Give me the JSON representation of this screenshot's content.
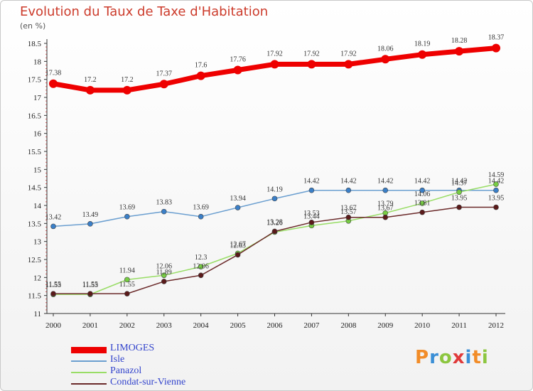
{
  "title": "Evolution du Taux de Taxe d'Habitation",
  "unit": "(en %)",
  "logo": {
    "text": [
      "P",
      "r",
      "o",
      "x",
      "i",
      "t",
      "i"
    ],
    "colors": [
      "#f28c28",
      "#3a8fd6",
      "#8cc63f",
      "#e03a3a",
      "#3a8fd6",
      "#f28c28",
      "#8cc63f"
    ]
  },
  "chart_data": {
    "type": "line",
    "x": [
      "2000",
      "2001",
      "2002",
      "2003",
      "2004",
      "2005",
      "2006",
      "2007",
      "2008",
      "2009",
      "2010",
      "2011",
      "2012"
    ],
    "ylim": [
      11,
      18.5
    ],
    "yticks": [
      "11",
      "11.5",
      "12",
      "12.5",
      "13",
      "13.5",
      "14",
      "14.5",
      "15",
      "15.5",
      "16",
      "16.5",
      "17",
      "17.5",
      "18",
      "18.5"
    ],
    "grid": false,
    "legend": "bottom-left",
    "series": [
      {
        "name": "LIMOGES",
        "color": "#ee0000",
        "marker": "#ee0000",
        "width": 7,
        "values": [
          17.38,
          17.2,
          17.2,
          17.37,
          17.6,
          17.76,
          17.92,
          17.92,
          17.92,
          18.06,
          18.19,
          18.28,
          18.37
        ],
        "labels": [
          "17.38",
          "17.2",
          "17.2",
          "17.37",
          "17.6",
          "17.76",
          "17.92",
          "17.92",
          "17.92",
          "18.06",
          "18.19",
          "18.28",
          "18.37"
        ]
      },
      {
        "name": "Isle",
        "color": "#6b9fd0",
        "marker": "#3a7fc8",
        "width": 1.5,
        "values": [
          13.42,
          13.49,
          13.69,
          13.83,
          13.69,
          13.94,
          14.19,
          14.42,
          14.42,
          14.42,
          14.42,
          14.42,
          14.42
        ],
        "labels": [
          "13.42",
          "13.49",
          "13.69",
          "13.83",
          "13.69",
          "13.94",
          "14.19",
          "14.42",
          "14.42",
          "14.42",
          "14.42",
          "14.42",
          "14.42"
        ]
      },
      {
        "name": "Panazol",
        "color": "#99dd66",
        "marker": "#77cc44",
        "width": 1.5,
        "values": [
          11.53,
          11.53,
          11.94,
          12.06,
          12.3,
          12.67,
          13.26,
          13.44,
          13.57,
          13.79,
          14.06,
          14.37,
          14.59
        ],
        "labels": [
          "11.53",
          "11.53",
          "11.94",
          "12.06",
          "12.3",
          "12.67",
          "13.26",
          "13.44",
          "13.57",
          "13.79",
          "14.06",
          "14.37",
          "14.59"
        ]
      },
      {
        "name": "Condat-sur-Vienne",
        "color": "#6b2a2a",
        "marker": "#5a1a1a",
        "width": 1.5,
        "values": [
          11.55,
          11.55,
          11.55,
          11.89,
          12.06,
          12.63,
          13.28,
          13.53,
          13.67,
          13.67,
          13.81,
          13.95,
          13.95
        ],
        "labels": [
          "11.55",
          "11.55",
          "11.55",
          "11.89",
          "12.06",
          "12.63",
          "13.28",
          "13.53",
          "13.67",
          "13.67",
          "13.81",
          "13.95",
          "13.95"
        ]
      }
    ]
  }
}
